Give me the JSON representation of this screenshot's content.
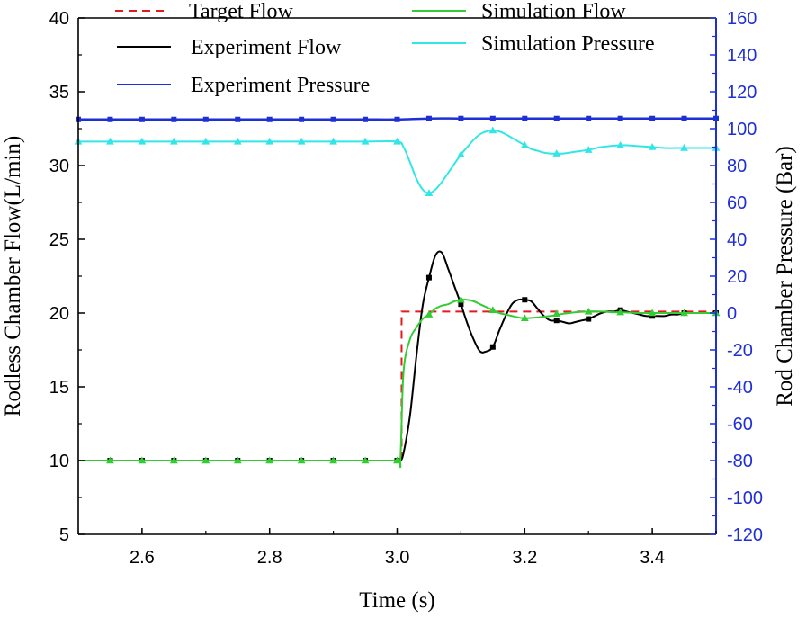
{
  "chart_data": {
    "type": "line",
    "title": "",
    "xlabel": "Time (s)",
    "ylabel_left": "Rodless Chamber Flow(L/min)",
    "ylabel_right": "Rod Chamber Pressure (Bar)",
    "xlim": [
      2.5,
      3.5
    ],
    "ylim_left": [
      5,
      40
    ],
    "ylim_right": [
      -120,
      160
    ],
    "xticks": [
      "2.6",
      "2.8",
      "3.0",
      "3.2",
      "3.4"
    ],
    "yticks_left": [
      "5",
      "10",
      "15",
      "20",
      "25",
      "30",
      "35",
      "40"
    ],
    "yticks_right": [
      "-120",
      "-100",
      "-80",
      "-60",
      "-40",
      "-20",
      "0",
      "20",
      "40",
      "60",
      "80",
      "100",
      "120",
      "140",
      "160"
    ],
    "grid": false,
    "legend_position": "top",
    "colors": {
      "target": "#e41a1c",
      "experiment_flow": "#000000",
      "simulation_flow": "#33cc33",
      "simulation_pressure": "#33e6e6",
      "experiment_pressure": "#1f2fd6",
      "right_axis": "#1f2fd6"
    },
    "series": [
      {
        "name": "Target Flow",
        "axis": "left",
        "style": "dashed",
        "marker": "none",
        "x": [
          2.5,
          3.007,
          3.007,
          3.5
        ],
        "y": [
          10,
          10,
          20.1,
          20.1
        ]
      },
      {
        "name": "Experiment Flow",
        "axis": "left",
        "style": "solid",
        "marker": "square",
        "x": [
          2.5,
          2.55,
          2.6,
          2.65,
          2.7,
          2.75,
          2.8,
          2.85,
          2.9,
          2.95,
          3.0,
          3.005,
          3.01,
          3.02,
          3.03,
          3.04,
          3.05,
          3.06,
          3.07,
          3.08,
          3.09,
          3.1,
          3.11,
          3.12,
          3.13,
          3.14,
          3.15,
          3.16,
          3.17,
          3.18,
          3.19,
          3.2,
          3.21,
          3.22,
          3.23,
          3.24,
          3.25,
          3.26,
          3.27,
          3.28,
          3.29,
          3.3,
          3.31,
          3.32,
          3.33,
          3.34,
          3.35,
          3.36,
          3.37,
          3.38,
          3.39,
          3.4,
          3.41,
          3.42,
          3.43,
          3.44,
          3.45,
          3.46,
          3.47,
          3.48,
          3.49,
          3.5
        ],
        "y": [
          10,
          10,
          10,
          10,
          10,
          10,
          10,
          10,
          10,
          10,
          10,
          10,
          10.5,
          13,
          17,
          20.5,
          22.4,
          23.9,
          24.1,
          23,
          21.8,
          20.6,
          19.3,
          18.2,
          17.4,
          17.4,
          17.7,
          18.8,
          19.8,
          20.6,
          20.9,
          20.9,
          20.8,
          20.3,
          19.8,
          19.5,
          19.5,
          19.4,
          19.3,
          19.4,
          19.5,
          19.6,
          19.8,
          20,
          20.1,
          20.1,
          20.2,
          20.1,
          20,
          19.9,
          19.8,
          19.8,
          19.8,
          19.8,
          19.9,
          19.9,
          20,
          20,
          20,
          20,
          20,
          20
        ],
        "markers_x": [
          2.55,
          2.6,
          2.65,
          2.7,
          2.75,
          2.8,
          2.85,
          2.9,
          2.95,
          3.0,
          3.05,
          3.1,
          3.15,
          3.2,
          3.25,
          3.3,
          3.35,
          3.4,
          3.45,
          3.5
        ],
        "markers_y": [
          10,
          10,
          10,
          10,
          10,
          10,
          10,
          10,
          10,
          10,
          22.4,
          20.6,
          17.7,
          20.9,
          19.5,
          19.6,
          20.2,
          19.8,
          20,
          20
        ]
      },
      {
        "name": "Simulation Flow",
        "axis": "left",
        "style": "solid",
        "marker": "triangle",
        "x": [
          2.5,
          2.55,
          2.6,
          2.65,
          2.7,
          2.75,
          2.8,
          2.85,
          2.9,
          2.95,
          3.0,
          3.005,
          3.01,
          3.02,
          3.03,
          3.04,
          3.05,
          3.06,
          3.07,
          3.08,
          3.09,
          3.1,
          3.11,
          3.12,
          3.13,
          3.14,
          3.15,
          3.16,
          3.17,
          3.18,
          3.19,
          3.2,
          3.22,
          3.24,
          3.26,
          3.28,
          3.3,
          3.32,
          3.34,
          3.35,
          3.38,
          3.4,
          3.42,
          3.45,
          3.48,
          3.5
        ],
        "y": [
          10,
          10,
          10,
          10,
          10,
          10,
          10,
          10,
          10,
          10,
          10,
          10,
          16,
          18.2,
          19,
          19.6,
          19.9,
          20.3,
          20.5,
          20.6,
          20.8,
          20.9,
          20.9,
          20.8,
          20.6,
          20.4,
          20.2,
          20,
          19.9,
          19.8,
          19.7,
          19.65,
          19.7,
          19.8,
          19.95,
          20.05,
          20.1,
          20.1,
          20.05,
          20.05,
          20,
          20,
          20,
          20,
          20,
          20
        ],
        "markers_x": [
          2.55,
          2.6,
          2.65,
          2.7,
          2.75,
          2.8,
          2.85,
          2.9,
          2.95,
          3.0,
          3.05,
          3.1,
          3.15,
          3.2,
          3.25,
          3.3,
          3.35,
          3.4,
          3.45,
          3.5
        ],
        "markers_y": [
          10,
          10,
          10,
          10,
          10,
          10,
          10,
          10,
          10,
          10,
          19.9,
          20.9,
          20.2,
          19.65,
          19.95,
          20.1,
          20.05,
          20,
          20,
          20
        ]
      },
      {
        "name": "Simulation Pressure",
        "axis": "right",
        "style": "solid",
        "marker": "triangle",
        "x": [
          2.5,
          2.55,
          2.6,
          2.65,
          2.7,
          2.75,
          2.8,
          2.85,
          2.9,
          2.95,
          3.0,
          3.01,
          3.02,
          3.03,
          3.04,
          3.05,
          3.06,
          3.07,
          3.08,
          3.09,
          3.1,
          3.11,
          3.12,
          3.13,
          3.14,
          3.15,
          3.16,
          3.17,
          3.18,
          3.19,
          3.2,
          3.21,
          3.22,
          3.23,
          3.24,
          3.25,
          3.26,
          3.28,
          3.3,
          3.32,
          3.35,
          3.38,
          3.4,
          3.42,
          3.45,
          3.48,
          3.5
        ],
        "y": [
          93,
          93,
          93,
          93,
          93,
          93,
          93,
          93,
          93,
          93,
          93,
          90,
          82,
          73,
          67,
          65,
          67,
          71,
          76,
          81,
          86,
          90,
          94,
          97,
          98.5,
          99,
          98.5,
          97,
          95,
          93,
          91,
          89,
          88,
          87,
          86.5,
          86.5,
          86.5,
          87.5,
          88.5,
          90,
          91,
          90.5,
          90,
          89.5,
          89.5,
          89.5,
          89.5
        ],
        "markers_x": [
          2.5,
          2.55,
          2.6,
          2.65,
          2.7,
          2.75,
          2.8,
          2.85,
          2.9,
          2.95,
          3.0,
          3.05,
          3.1,
          3.15,
          3.2,
          3.25,
          3.3,
          3.35,
          3.4,
          3.45,
          3.5
        ],
        "markers_y": [
          93,
          93,
          93,
          93,
          93,
          93,
          93,
          93,
          93,
          93,
          93,
          65,
          86,
          99,
          91,
          86.5,
          88.5,
          91,
          90,
          89.5,
          89.5
        ]
      },
      {
        "name": "Experiment Pressure",
        "axis": "right",
        "style": "solid",
        "marker": "square",
        "x": [
          2.5,
          2.55,
          2.6,
          2.65,
          2.7,
          2.75,
          2.8,
          2.85,
          2.9,
          2.95,
          3.0,
          3.05,
          3.1,
          3.15,
          3.2,
          3.25,
          3.3,
          3.35,
          3.4,
          3.45,
          3.5
        ],
        "y": [
          105,
          105,
          105,
          105,
          105,
          105,
          105,
          105,
          105,
          105,
          105,
          105.5,
          105.5,
          105.5,
          105.5,
          105.5,
          105.5,
          105.5,
          105.5,
          105.5,
          105.5
        ],
        "markers_x": [
          2.5,
          2.55,
          2.6,
          2.65,
          2.7,
          2.75,
          2.8,
          2.85,
          2.9,
          2.95,
          3.0,
          3.05,
          3.1,
          3.15,
          3.2,
          3.25,
          3.3,
          3.35,
          3.4,
          3.45,
          3.5
        ],
        "markers_y": [
          105,
          105,
          105,
          105,
          105,
          105,
          105,
          105,
          105,
          105,
          105,
          105.5,
          105.5,
          105.5,
          105.5,
          105.5,
          105.5,
          105.5,
          105.5,
          105.5,
          105.5
        ]
      }
    ],
    "legend": [
      {
        "label": "Target Flow",
        "series": "Target Flow"
      },
      {
        "label": "Simulation Flow",
        "series": "Simulation Flow"
      },
      {
        "label": "Experiment Flow",
        "series": "Experiment Flow"
      },
      {
        "label": "Simulation Pressure",
        "series": "Simulation Pressure"
      },
      {
        "label": "Experiment Pressure",
        "series": "Experiment Pressure"
      }
    ]
  }
}
